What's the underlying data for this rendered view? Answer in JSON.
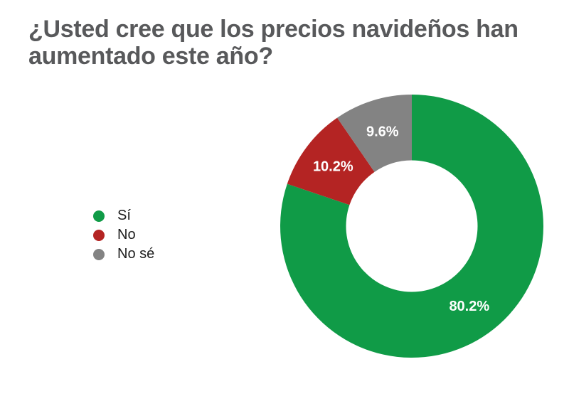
{
  "chart_data": {
    "type": "pie",
    "subtype": "donut",
    "title": "¿Usted cree que los precios navideños han\naumentado este año?",
    "title_color": "#58595b",
    "series": [
      {
        "id": "si",
        "label": "Sí",
        "value": 80.2,
        "display": "80.2%",
        "color": "#109b47"
      },
      {
        "id": "no",
        "label": "No",
        "value": 10.2,
        "display": "10.2%",
        "color": "#b42423"
      },
      {
        "id": "no-se",
        "label": "No sé",
        "value": 9.6,
        "display": "9.6%",
        "color": "#838383"
      }
    ],
    "start_angle_deg": 0,
    "direction": "clockwise",
    "inner_radius_ratio": 0.5,
    "legend_position": "left",
    "slice_label_color": "#ffffff",
    "background": "#ffffff"
  }
}
